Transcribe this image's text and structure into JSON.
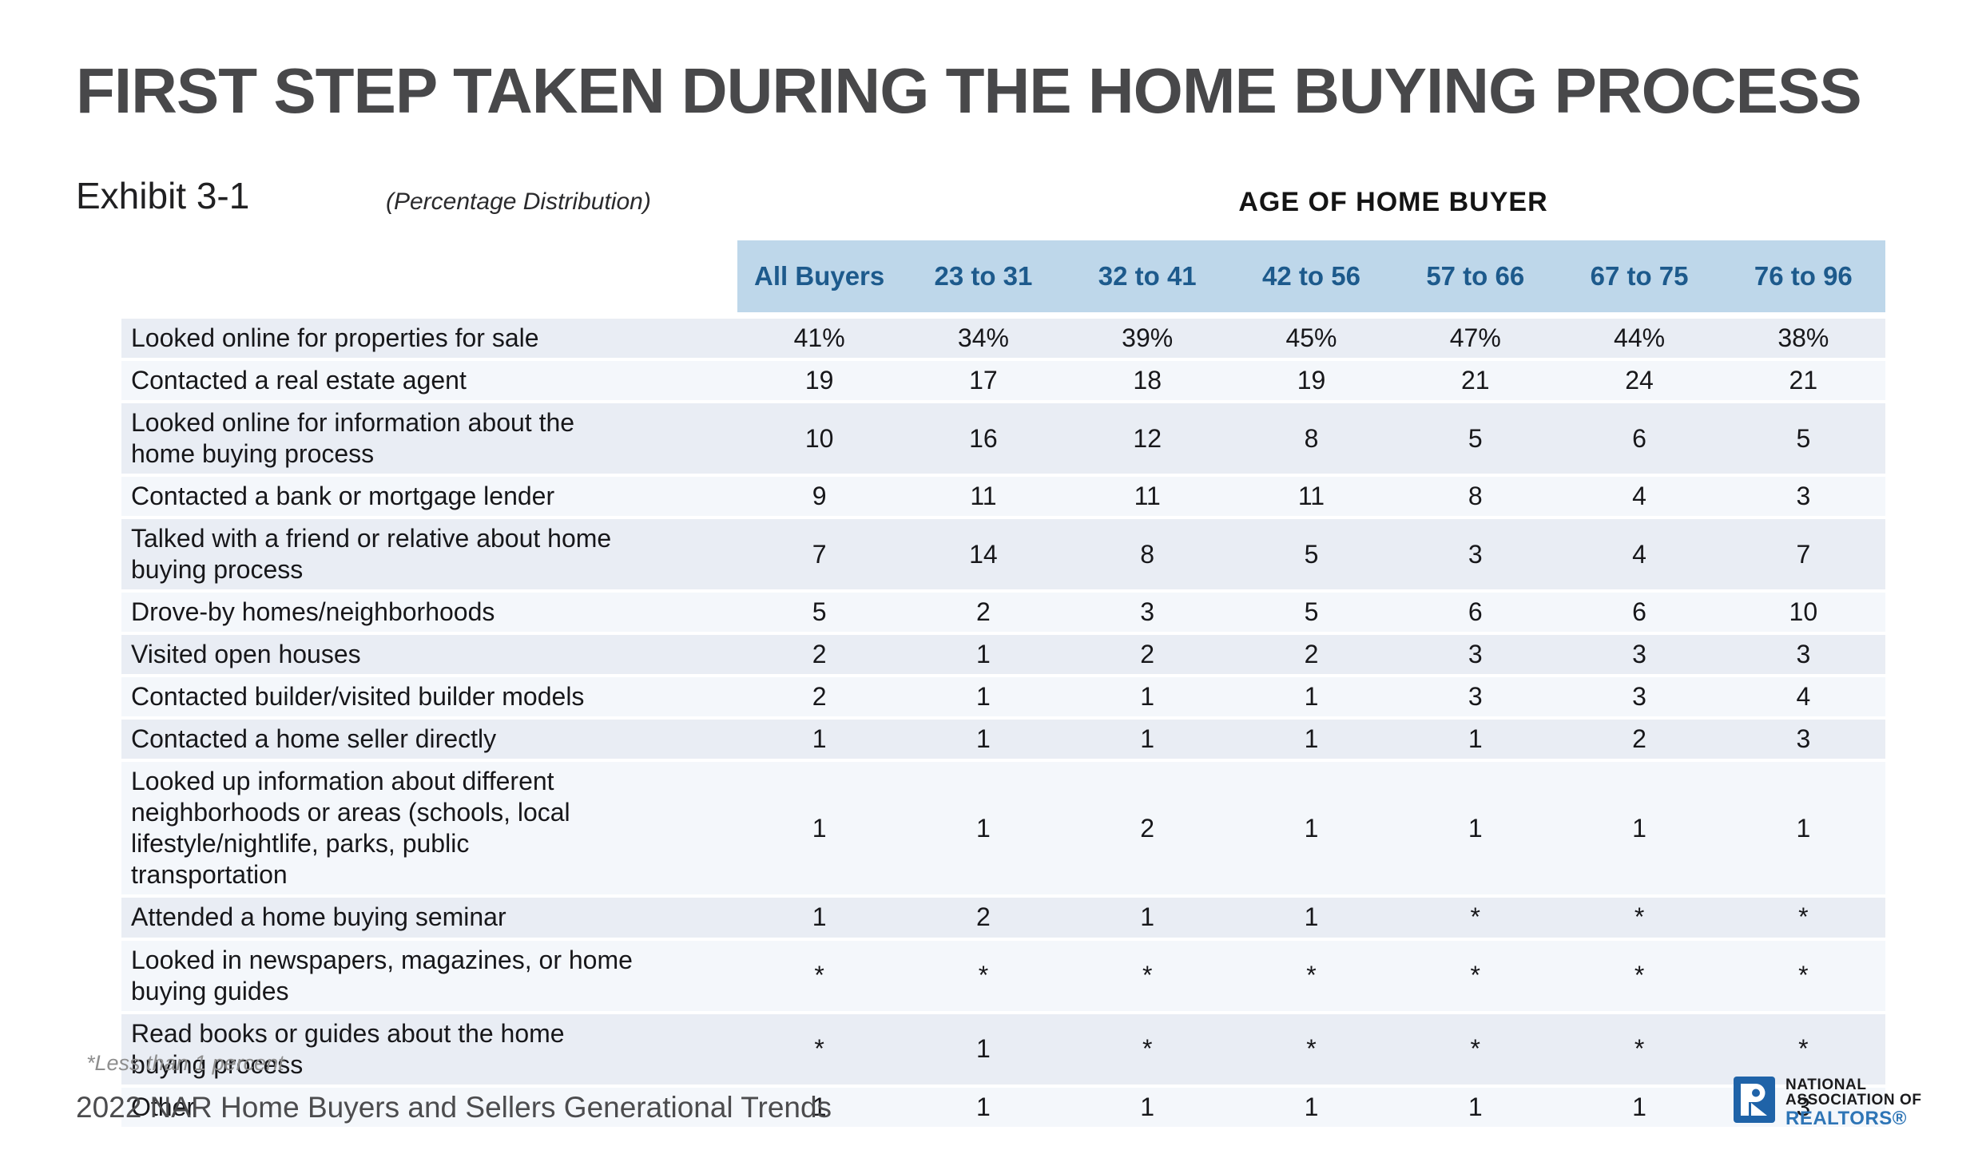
{
  "page": {
    "title": "FIRST STEP TAKEN DURING THE HOME BUYING PROCESS",
    "exhibit_label": "Exhibit 3-1",
    "distribution_note": "(Percentage Distribution)",
    "age_group_heading": "AGE OF HOME BUYER",
    "footnote": "*Less than 1 percent",
    "source": "2022 NAR Home Buyers and Sellers Generational Trends"
  },
  "logo": {
    "line1": "NATIONAL",
    "line2": "ASSOCIATION OF",
    "line3": "REALTORS®"
  },
  "colors": {
    "header_band_bg": "#bed7ea",
    "header_text": "#1d5a8c",
    "row_dark": "#e9edf4",
    "row_light": "#f4f7fb",
    "title_text": "#48484a",
    "body_text": "#17171a",
    "footnote_text": "#8e8e8e",
    "source_text": "#4c4c4e",
    "logo_blue": "#1f63a8",
    "realtors_blue": "#2e75b6"
  },
  "chart_data": {
    "type": "table",
    "title": "FIRST STEP TAKEN DURING THE HOME BUYING PROCESS",
    "exhibit": "Exhibit 3-1",
    "note": "(Percentage Distribution)",
    "column_group_label": "AGE OF HOME BUYER",
    "columns": [
      "All Buyers",
      "23 to 31",
      "32 to 41",
      "42 to 56",
      "57 to 66",
      "67 to 75",
      "76 to 96"
    ],
    "rows": [
      {
        "label": "Looked online for properties for sale",
        "values": [
          "41%",
          "34%",
          "39%",
          "45%",
          "47%",
          "44%",
          "38%"
        ]
      },
      {
        "label": "Contacted a real estate agent",
        "values": [
          "19",
          "17",
          "18",
          "19",
          "21",
          "24",
          "21"
        ]
      },
      {
        "label": "Looked online for information about the\nhome buying process",
        "values": [
          "10",
          "16",
          "12",
          "8",
          "5",
          "6",
          "5"
        ]
      },
      {
        "label": "Contacted a bank or mortgage lender",
        "values": [
          "9",
          "11",
          "11",
          "11",
          "8",
          "4",
          "3"
        ]
      },
      {
        "label": "Talked with a friend or relative about home\nbuying process",
        "values": [
          "7",
          "14",
          "8",
          "5",
          "3",
          "4",
          "7"
        ]
      },
      {
        "label": "Drove-by homes/neighborhoods",
        "values": [
          "5",
          "2",
          "3",
          "5",
          "6",
          "6",
          "10"
        ]
      },
      {
        "label": "Visited open houses",
        "values": [
          "2",
          "1",
          "2",
          "2",
          "3",
          "3",
          "3"
        ]
      },
      {
        "label": "Contacted builder/visited builder models",
        "values": [
          "2",
          "1",
          "1",
          "1",
          "3",
          "3",
          "4"
        ]
      },
      {
        "label": "Contacted a home seller directly",
        "values": [
          "1",
          "1",
          "1",
          "1",
          "1",
          "2",
          "3"
        ]
      },
      {
        "label": "Looked up information about different\nneighborhoods or areas (schools, local\nlifestyle/nightlife, parks, public\ntransportation",
        "values": [
          "1",
          "1",
          "2",
          "1",
          "1",
          "1",
          "1"
        ]
      },
      {
        "label": "Attended a home buying seminar",
        "values": [
          "1",
          "2",
          "1",
          "1",
          "*",
          "*",
          "*"
        ]
      },
      {
        "label": "Looked in newspapers, magazines, or home\nbuying guides",
        "values": [
          "*",
          "*",
          "*",
          "*",
          "*",
          "*",
          "*"
        ]
      },
      {
        "label": "Read books or guides about the home\nbuying process",
        "values": [
          "*",
          "1",
          "*",
          "*",
          "*",
          "*",
          "*"
        ]
      },
      {
        "label": "Other",
        "values": [
          "1",
          "1",
          "1",
          "1",
          "1",
          "1",
          "3"
        ]
      }
    ],
    "footnote": "*Less than 1 percent",
    "source": "2022 NAR Home Buyers and Sellers Generational Trends"
  }
}
